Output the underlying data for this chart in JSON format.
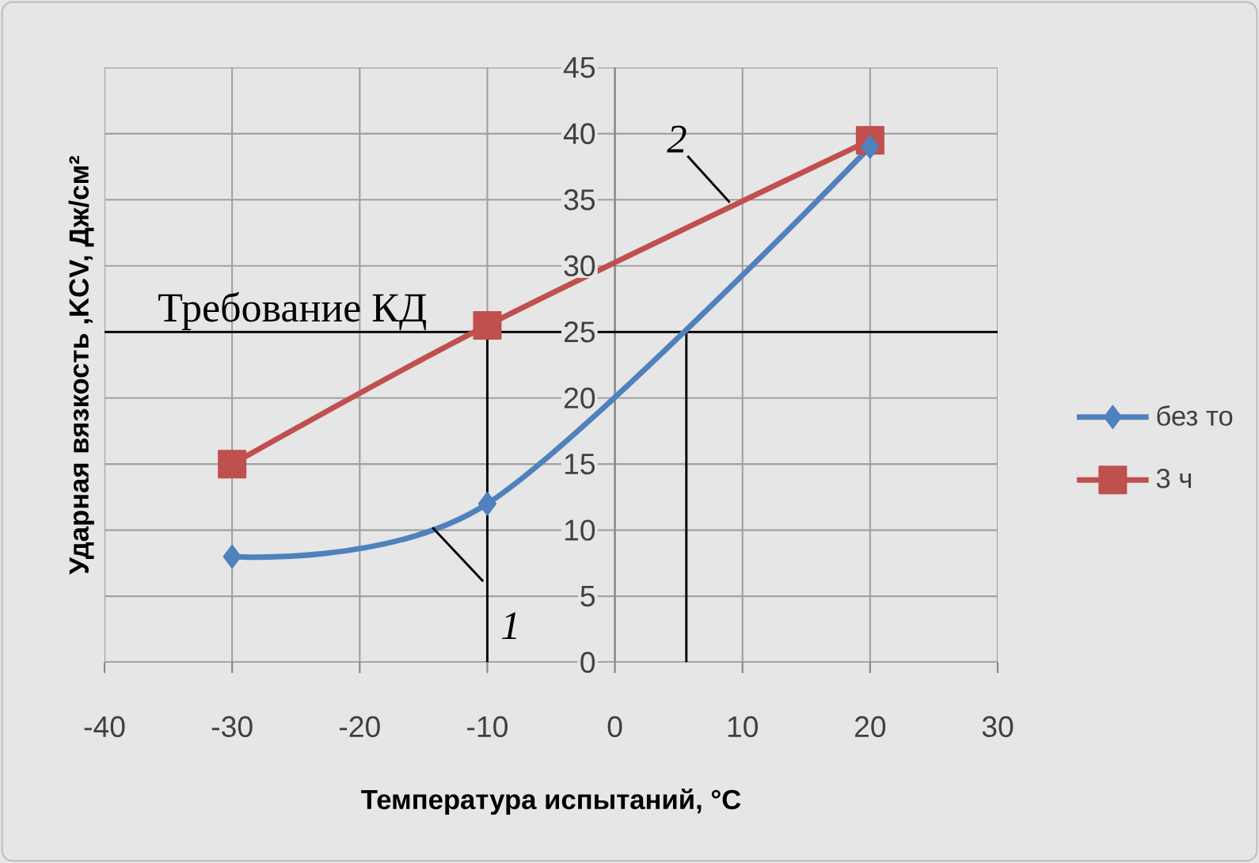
{
  "chart_data": {
    "type": "line",
    "xlabel": "Температура испытаний, °C",
    "ylabel": "Ударная вязкость ,KCV, Дж/см²",
    "x": [
      -30,
      -10,
      20
    ],
    "series": [
      {
        "name": "без то",
        "color": "#4f81bd",
        "marker": "diamond",
        "values": [
          8,
          12,
          39
        ]
      },
      {
        "name": "3 ч",
        "color": "#c0504d",
        "marker": "square",
        "values": [
          15,
          25.5,
          39.5
        ]
      }
    ],
    "xlim": [
      -40,
      30
    ],
    "ylim": [
      0,
      45
    ],
    "xticks": [
      -40,
      -30,
      -20,
      -10,
      0,
      10,
      20,
      30
    ],
    "yticks": [
      0,
      5,
      10,
      15,
      20,
      25,
      30,
      35,
      40,
      45
    ],
    "grid": true,
    "legend": "right",
    "ref_lines": [
      {
        "axis": "y",
        "value": 25,
        "label": "Требование КД"
      },
      {
        "axis": "x",
        "value": -10
      },
      {
        "axis": "x",
        "value": 5.6
      }
    ],
    "annotations": [
      {
        "text": "1",
        "x": -14.3,
        "y": 10.2
      },
      {
        "text": "2",
        "x": 9,
        "y": 34.8
      }
    ]
  }
}
